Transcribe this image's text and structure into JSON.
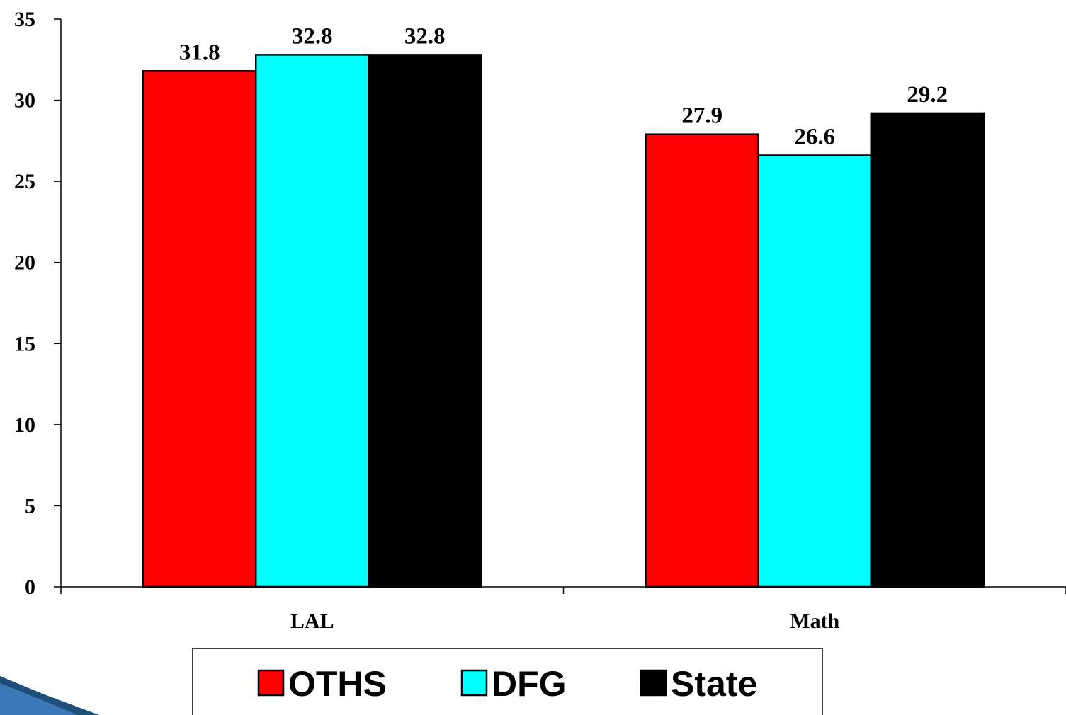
{
  "chart_data": {
    "type": "bar",
    "categories": [
      "LAL",
      "Math"
    ],
    "series": [
      {
        "name": "OTHS",
        "color": "#ff0000",
        "values": [
          31.8,
          27.9
        ]
      },
      {
        "name": "DFG",
        "color": "#00ffff",
        "values": [
          32.8,
          26.6
        ]
      },
      {
        "name": "State",
        "color": "#000000",
        "values": [
          32.8,
          29.2
        ]
      }
    ],
    "value_labels": [
      [
        "31.8",
        "27.9"
      ],
      [
        "32.8",
        "26.6"
      ],
      [
        "32.8",
        "29.2"
      ]
    ],
    "ylim": [
      0,
      35
    ],
    "yticks": [
      0,
      5,
      10,
      15,
      20,
      25,
      30,
      35
    ],
    "title": "",
    "xlabel": "",
    "ylabel": "",
    "grid": false,
    "legend_position": "bottom"
  }
}
